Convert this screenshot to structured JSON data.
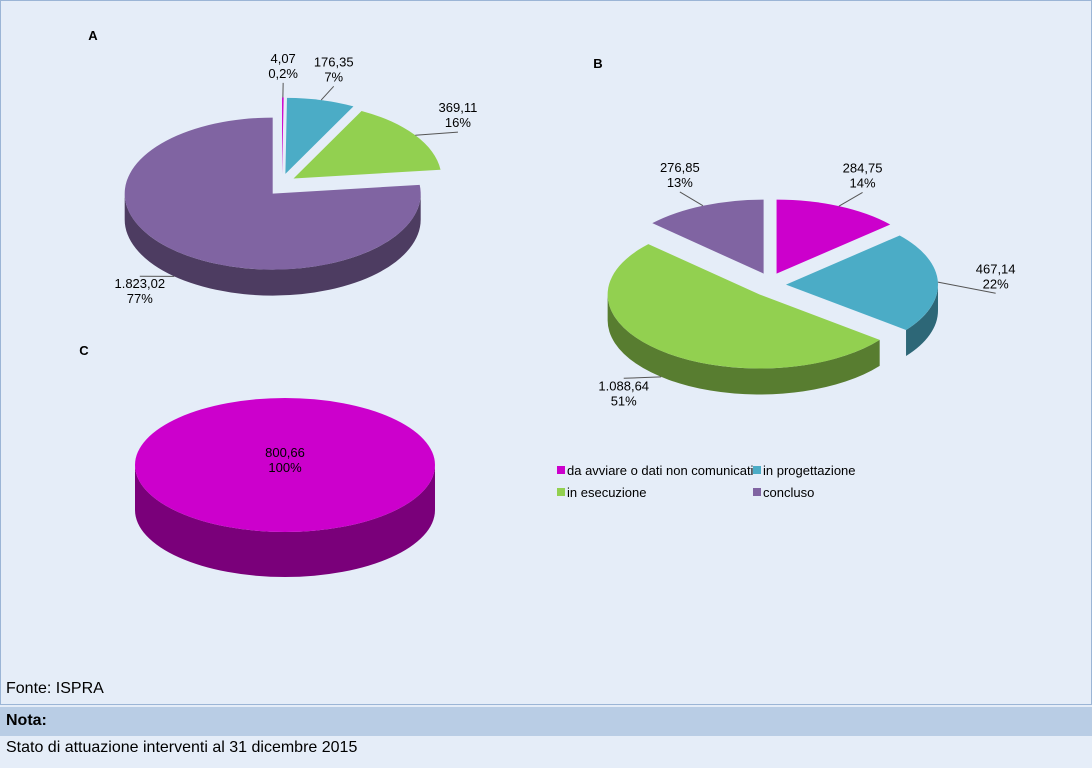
{
  "chart_data": [
    {
      "type": "pie",
      "title": "A",
      "categories": [
        "da avviare o dati non comunicati",
        "in progettazione",
        "in esecuzione",
        "concluso"
      ],
      "colors": [
        "#cc00cc",
        "#4bacc6",
        "#92d050",
        "#8064a2"
      ],
      "values": [
        4.07,
        176.35,
        369.11,
        1823.02
      ],
      "value_labels": [
        "4,07",
        "176,35",
        "369,11",
        "1.823,02"
      ],
      "percents": [
        0.2,
        7,
        16,
        77
      ],
      "percent_labels": [
        "0,2%",
        "7%",
        "16%",
        "77%"
      ]
    },
    {
      "type": "pie",
      "title": "B",
      "categories": [
        "da avviare o dati non comunicati",
        "in progettazione",
        "in esecuzione",
        "concluso"
      ],
      "colors": [
        "#cc00cc",
        "#4bacc6",
        "#92d050",
        "#8064a2"
      ],
      "values": [
        284.75,
        467.14,
        1088.64,
        276.85
      ],
      "value_labels": [
        "284,75",
        "467,14",
        "1.088,64",
        "276,85"
      ],
      "percents": [
        14,
        22,
        51,
        13
      ],
      "percent_labels": [
        "14%",
        "22%",
        "51%",
        "13%"
      ],
      "legend": "right"
    },
    {
      "type": "pie",
      "title": "C",
      "categories": [
        "da avviare o dati non comunicati"
      ],
      "colors": [
        "#cc00cc"
      ],
      "values": [
        800.66
      ],
      "value_labels": [
        "800,66"
      ],
      "percents": [
        100
      ],
      "percent_labels": [
        "100%"
      ]
    }
  ],
  "footer": {
    "source": "Fonte: ISPRA",
    "note_title": "Nota:",
    "note": "Stato di attuazione interventi al 31 dicembre 2015"
  }
}
